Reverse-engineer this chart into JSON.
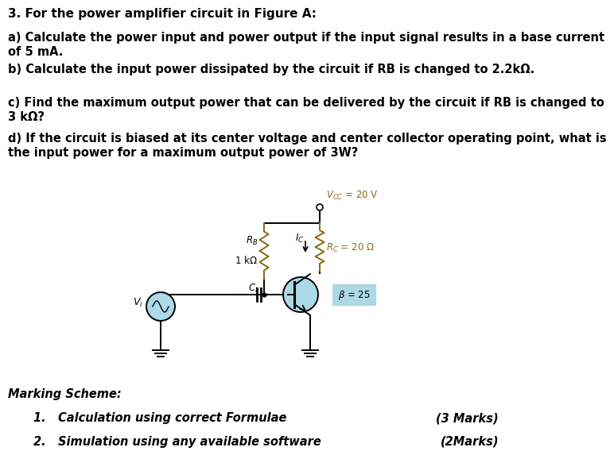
{
  "background_color": "#ffffff",
  "title_text": "3. For the power amplifier circuit in Figure A:",
  "questions": [
    "a) Calculate the power input and power output if the input signal results in a base current\nof 5 mA.",
    "b) Calculate the input power dissipated by the circuit if RB is changed to 2.2kΩ.",
    "c) Find the maximum output power that can be delivered by the circuit if RB is changed to\n3 kΩ?",
    "d) If the circuit is biased at its center voltage and center collector operating point, what is\nthe input power for a maximum output power of 3W?"
  ],
  "marking_scheme_title": "Marking Scheme:",
  "marking_items": [
    [
      "1.   Calculation using correct Formulae",
      "(3 Marks)"
    ],
    [
      "2.   Simulation using any available software",
      "(2Marks)"
    ]
  ],
  "text_color": "#000000",
  "circuit_wire_color": "#000000",
  "circuit_component_color": "#8B6914",
  "transistor_circle_color": "#ADD8E6",
  "source_circle_color": "#ADD8E6",
  "beta_box_color": "#ADD8E6",
  "vcc_color": "#8B6914",
  "rc_color": "#8B6914"
}
